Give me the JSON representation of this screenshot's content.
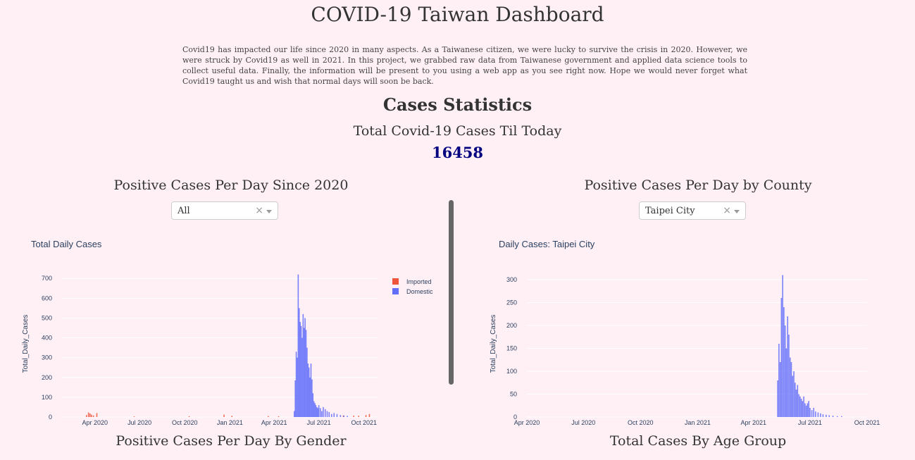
{
  "page": {
    "title": "COVID-19 Taiwan Dashboard",
    "intro": "Covid19 has impacted our life since 2020 in many aspects. As a Taiwanese citizen, we were lucky to survive the crisis in 2020. However, we were struck by Covid19 as well in 2021. In this project, we grabbed raw data from Taiwanese government and applied data science tools to collect useful data. Finally, the information will be present to you using a web app as you see right now. Hope we would never forget what Covid19 taught us and wish that normal days will soon be back.",
    "section_title": "Cases Statistics",
    "total_label": "Total Covid-19 Cases Til Today",
    "total_value": "16458"
  },
  "left_panel": {
    "heading": "Positive Cases Per Day Since 2020",
    "dropdown_value": "All",
    "bottom_heading": "Positive Cases Per Day By Gender"
  },
  "right_panel": {
    "heading": "Positive Cases Per Day by County",
    "dropdown_value": "Taipei City",
    "bottom_heading": "Total Cases By Age Group"
  },
  "colors": {
    "imported": "#ef553b",
    "domestic": "#636efa",
    "total_value": "#000080"
  },
  "chart_data": [
    {
      "type": "bar",
      "title": "Total Daily Cases",
      "ylabel": "Total_Daily_Cases",
      "xlabel": "",
      "ylim": [
        0,
        740
      ],
      "yticks": [
        0,
        100,
        200,
        300,
        400,
        500,
        600,
        700
      ],
      "xticks": [
        "Apr 2020",
        "Jul 2020",
        "Oct 2020",
        "Jan 2021",
        "Apr 2021",
        "Jul 2021",
        "Oct 2021"
      ],
      "legend_position": "top-right",
      "series": [
        {
          "name": "Imported",
          "x": [
            "2020-03-15",
            "2020-03-19",
            "2020-03-22",
            "2020-03-25",
            "2020-03-29",
            "2020-04-05",
            "2020-06-20",
            "2020-10-10",
            "2020-12-20",
            "2021-01-05",
            "2021-03-20",
            "2021-04-10",
            "2021-08-20",
            "2021-09-10",
            "2021-09-20",
            "2021-10-05",
            "2021-10-12"
          ],
          "values": [
            10,
            23,
            18,
            12,
            8,
            20,
            3,
            4,
            12,
            6,
            5,
            4,
            8,
            7,
            6,
            10,
            15
          ]
        },
        {
          "name": "Domestic",
          "x": [
            "2021-05-12",
            "2021-05-14",
            "2021-05-16",
            "2021-05-18",
            "2021-05-20",
            "2021-05-22",
            "2021-05-24",
            "2021-05-26",
            "2021-05-28",
            "2021-05-30",
            "2021-06-01",
            "2021-06-03",
            "2021-06-05",
            "2021-06-07",
            "2021-06-09",
            "2021-06-11",
            "2021-06-13",
            "2021-06-15",
            "2021-06-17",
            "2021-06-19",
            "2021-06-21",
            "2021-06-23",
            "2021-06-25",
            "2021-06-27",
            "2021-06-29",
            "2021-07-01",
            "2021-07-04",
            "2021-07-07",
            "2021-07-10",
            "2021-07-14",
            "2021-07-18",
            "2021-07-22",
            "2021-07-27",
            "2021-08-01",
            "2021-08-07",
            "2021-08-14",
            "2021-08-21",
            "2021-08-28"
          ],
          "values": [
            30,
            185,
            330,
            300,
            720,
            550,
            480,
            460,
            400,
            520,
            450,
            500,
            440,
            350,
            270,
            250,
            200,
            270,
            190,
            120,
            80,
            70,
            60,
            50,
            45,
            60,
            45,
            30,
            50,
            40,
            30,
            25,
            15,
            20,
            15,
            10,
            8,
            6
          ]
        }
      ]
    },
    {
      "type": "bar",
      "title": "Daily Cases: Taipei City",
      "ylabel": "Total_Daily_Cases",
      "xlabel": "",
      "ylim": [
        0,
        320
      ],
      "yticks": [
        0,
        50,
        100,
        150,
        200,
        250,
        300
      ],
      "xticks": [
        "Apr 2020",
        "Jul 2020",
        "Oct 2020",
        "Jan 2021",
        "Apr 2021",
        "Jul 2021",
        "Oct 2021"
      ],
      "series": [
        {
          "name": "Taipei City",
          "x": [
            "2021-05-10",
            "2021-05-12",
            "2021-05-14",
            "2021-05-16",
            "2021-05-18",
            "2021-05-20",
            "2021-05-22",
            "2021-05-24",
            "2021-05-26",
            "2021-05-28",
            "2021-05-30",
            "2021-06-01",
            "2021-06-03",
            "2021-06-05",
            "2021-06-07",
            "2021-06-09",
            "2021-06-11",
            "2021-06-13",
            "2021-06-15",
            "2021-06-17",
            "2021-06-19",
            "2021-06-21",
            "2021-06-23",
            "2021-06-25",
            "2021-06-27",
            "2021-06-29",
            "2021-07-01",
            "2021-07-04",
            "2021-07-07",
            "2021-07-10",
            "2021-07-14",
            "2021-07-18",
            "2021-07-22",
            "2021-07-27",
            "2021-08-01",
            "2021-08-07",
            "2021-08-14",
            "2021-08-21"
          ],
          "values": [
            80,
            160,
            120,
            260,
            310,
            240,
            200,
            150,
            220,
            180,
            130,
            120,
            90,
            100,
            75,
            60,
            70,
            50,
            45,
            40,
            35,
            45,
            30,
            25,
            30,
            35,
            20,
            15,
            20,
            12,
            10,
            8,
            6,
            5,
            4,
            3,
            2,
            2
          ]
        }
      ]
    }
  ]
}
